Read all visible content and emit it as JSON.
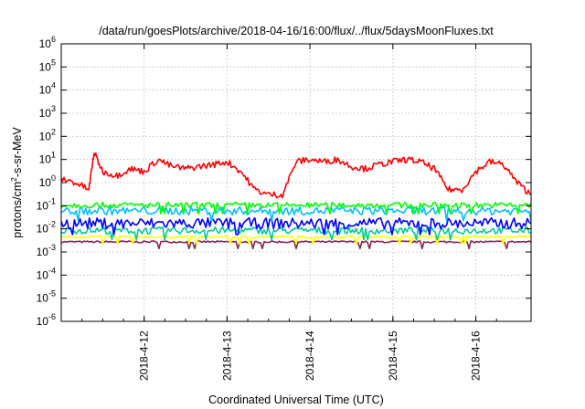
{
  "chart_data": {
    "type": "line",
    "title": "/data/run/goesPlots/archive/2018-04-16/16:00/flux/../flux/5daysMoonFluxes.txt",
    "xlabel": "Coordinated Universal Time (UTC)",
    "ylabel_parts": [
      "protons/cm",
      "2",
      "-s-sr-MeV"
    ],
    "y_scale": "log",
    "ylim": [
      1e-06,
      1000000
    ],
    "y_tick_exponents": [
      -6,
      -5,
      -4,
      -3,
      -2,
      -1,
      0,
      1,
      2,
      3,
      4,
      5,
      6
    ],
    "y_tick_base": "10",
    "x_range_days": [
      "2018-04-11 00:00",
      "2018-04-16 16:00"
    ],
    "x_ticks": [
      {
        "label": "2018-4-12",
        "date": "2018-04-12"
      },
      {
        "label": "2018-4-13",
        "date": "2018-04-13"
      },
      {
        "label": "2018-4-14",
        "date": "2018-04-14"
      },
      {
        "label": "2018-4-15",
        "date": "2018-04-15"
      },
      {
        "label": "2018-4-16",
        "date": "2018-04-16"
      }
    ],
    "grid": true,
    "series": [
      {
        "color": "#ff0000",
        "x": [
          "2018-04-11 00:00",
          "2018-04-11 04:00",
          "2018-04-11 08:00",
          "2018-04-11 09:30",
          "2018-04-11 12:00",
          "2018-04-11 16:00",
          "2018-04-11 20:00",
          "2018-04-12 00:00",
          "2018-04-12 04:00",
          "2018-04-12 08:00",
          "2018-04-12 12:00",
          "2018-04-12 16:00",
          "2018-04-12 20:00",
          "2018-04-13 00:00",
          "2018-04-13 04:00",
          "2018-04-13 08:00",
          "2018-04-13 12:00",
          "2018-04-13 16:00",
          "2018-04-13 20:00",
          "2018-04-14 00:00",
          "2018-04-14 04:00",
          "2018-04-14 08:00",
          "2018-04-14 12:00",
          "2018-04-14 16:00",
          "2018-04-14 20:00",
          "2018-04-15 00:00",
          "2018-04-15 04:00",
          "2018-04-15 08:00",
          "2018-04-15 12:00",
          "2018-04-15 16:00",
          "2018-04-15 20:00",
          "2018-04-16 00:00",
          "2018-04-16 04:00",
          "2018-04-16 08:00",
          "2018-04-16 12:00",
          "2018-04-16 16:00"
        ],
        "values": [
          1.5,
          1.0,
          0.5,
          20,
          3,
          2,
          4,
          3,
          10,
          5,
          4,
          5,
          6,
          8,
          3,
          0.5,
          0.3,
          0.3,
          8,
          10,
          8,
          10,
          5,
          4,
          6,
          8,
          10,
          8,
          4,
          0.5,
          0.5,
          3,
          8,
          6,
          1,
          0.3
        ]
      },
      {
        "color": "#00ff00",
        "values_band": [
          0.08,
          0.14
        ]
      },
      {
        "color": "#00bfff",
        "values_band": [
          0.04,
          0.09
        ]
      },
      {
        "color": "#0000ff",
        "values_band": [
          0.01,
          0.03
        ]
      },
      {
        "color": "#00cc99",
        "values_band": [
          0.006,
          0.012
        ]
      },
      {
        "color": "#ffff00",
        "values_band": [
          0.004,
          0.005
        ]
      },
      {
        "color": "#8b2252",
        "values_band": [
          0.0025,
          0.003
        ]
      }
    ]
  }
}
